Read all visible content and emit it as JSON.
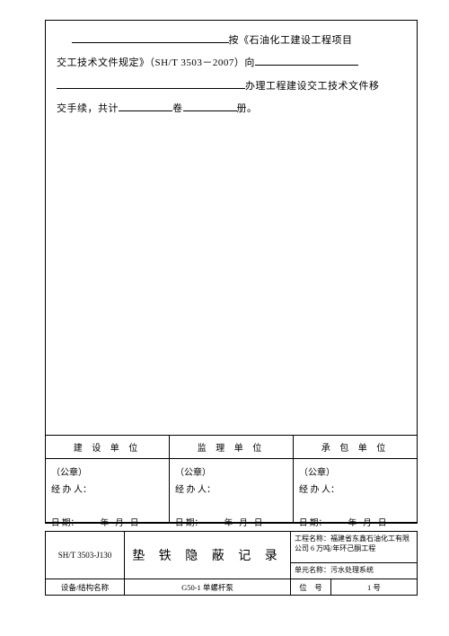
{
  "intro": {
    "seg1a": "按《石油化工建设工程项目",
    "seg1b": "交工技术文件规定》（SH/T 3503－2007）向",
    "seg2": "办理工程建设交工技术文件",
    "seg3": "移",
    "seg4a": "交手续，共计",
    "seg4b": "卷",
    "seg4c": "册。"
  },
  "sig": {
    "cols": [
      {
        "head": "建 设 单 位",
        "seal": "（公章）",
        "handler": "经 办 人："
      },
      {
        "head": "监 理 单 位",
        "seal": "（公章）",
        "handler": "经 办 人："
      },
      {
        "head": "承 包 单 位",
        "seal": "（公章）",
        "handler": "经 办 人："
      }
    ],
    "date_prefix": "日 期：",
    "y": "年",
    "m": "月",
    "d": "日"
  },
  "bottom": {
    "code": "SH/T 3503-J130",
    "title": "垫 铁 隐 蔽 记 录",
    "proj_label": "工程名称：",
    "proj_value": "福建省东鑫石油化工有限公司 6 万吨/年环己酮工程",
    "unit_label": "单元名称：",
    "unit_value": "污水处理系统",
    "row2": {
      "a": "设备/结构名称",
      "b": "G50-1 单螺杆泵",
      "c": "位　号",
      "d": "1 号"
    }
  },
  "style": {
    "ul_w_long": "175px",
    "ul_w_med": "115px",
    "ul_w_full": "210px",
    "ul_w_short": "60px"
  }
}
